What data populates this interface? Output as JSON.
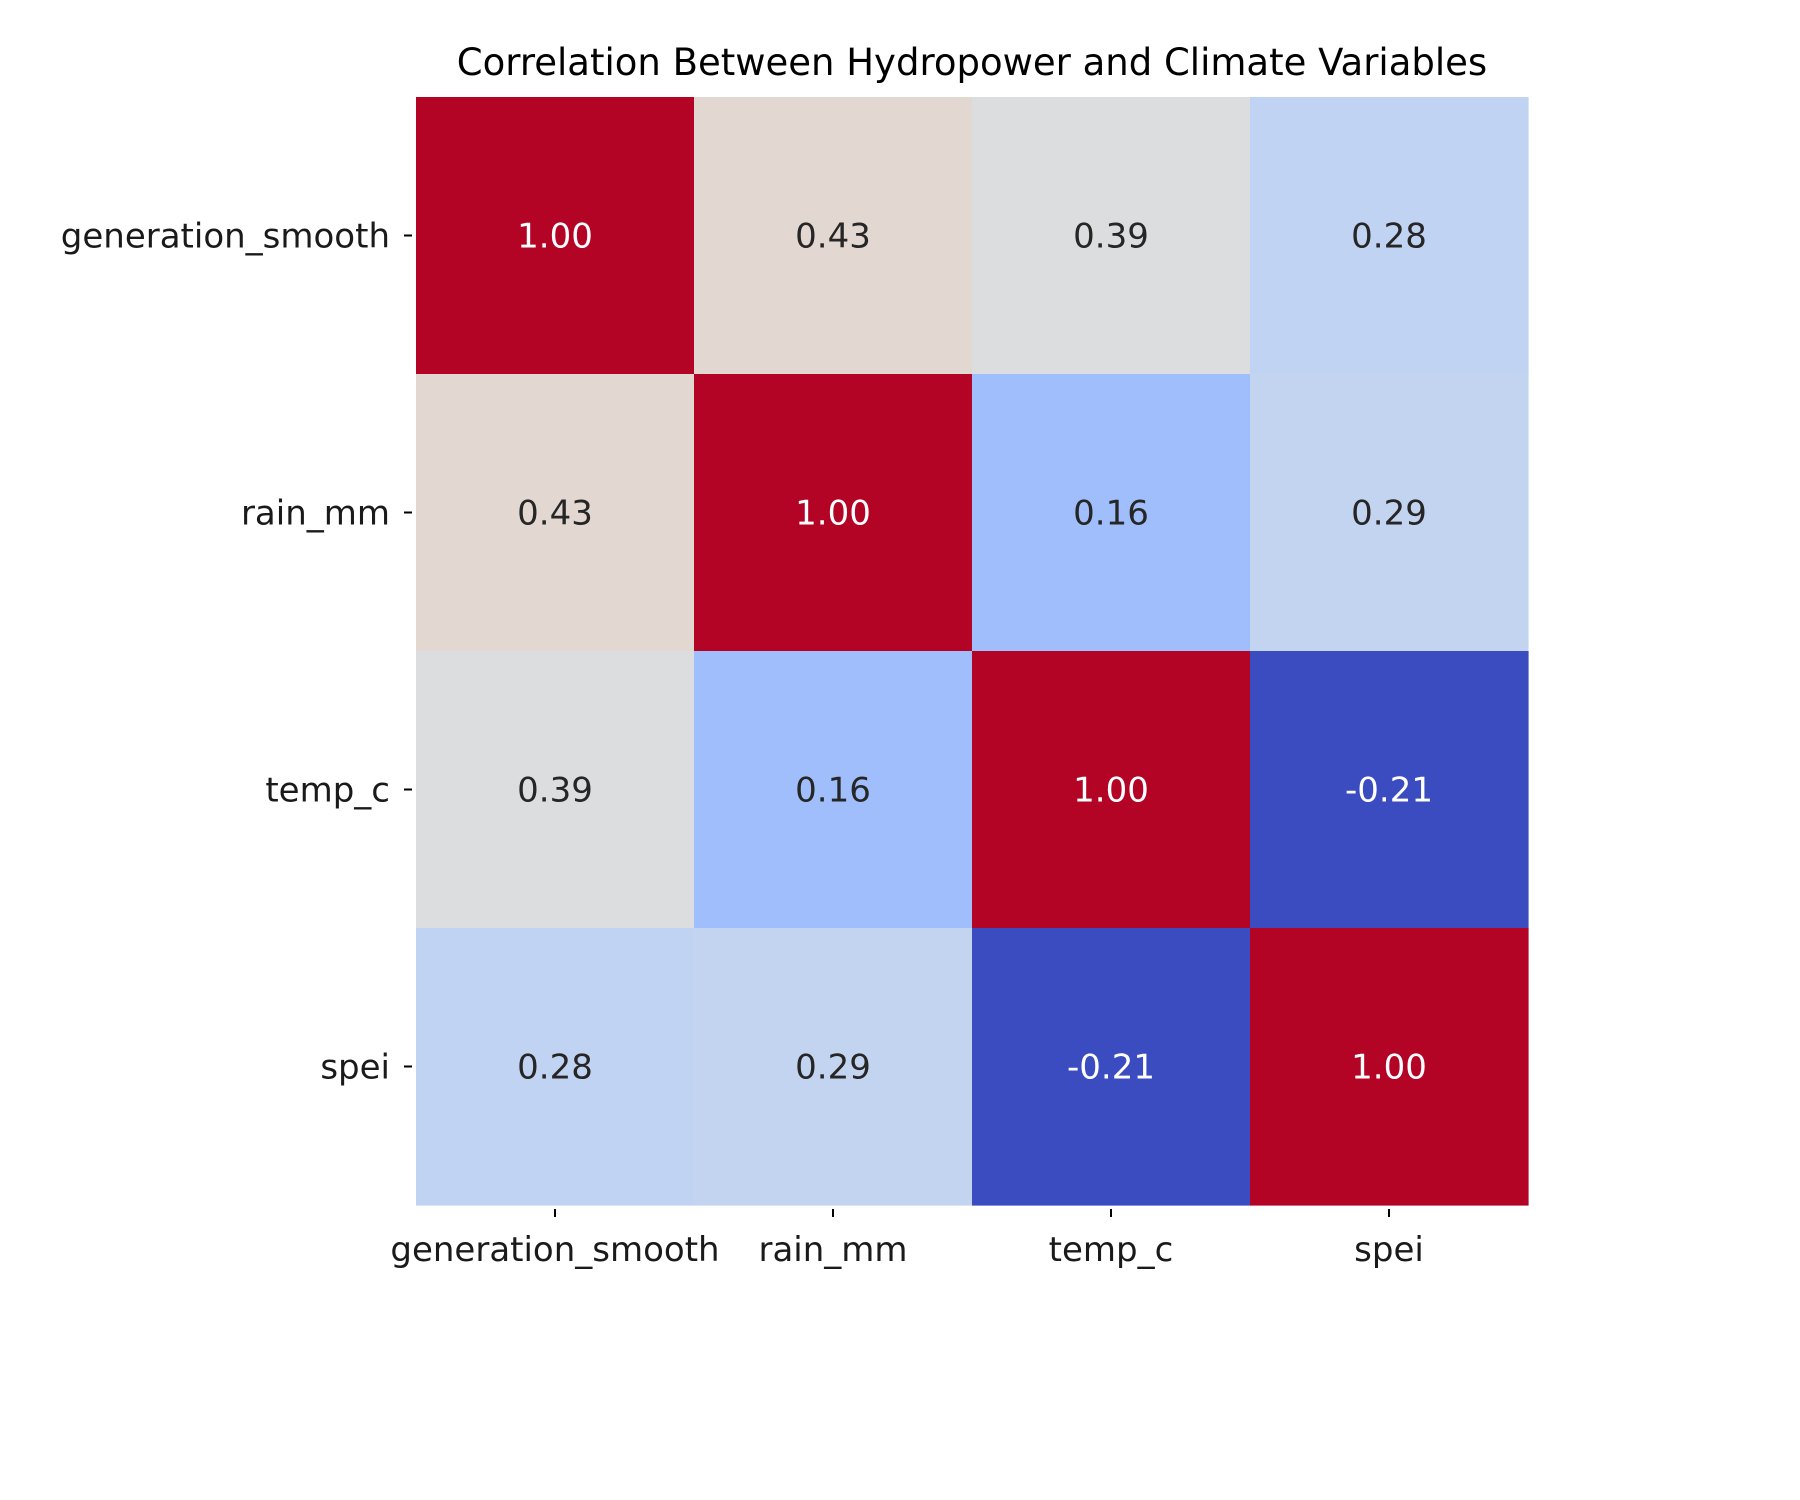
{
  "chart_data": {
    "type": "heatmap",
    "title": "Correlation Between Hydropower and Climate Variables",
    "xlabel": "",
    "ylabel": "",
    "x_categories": [
      "generation_smooth",
      "rain_mm",
      "temp_c",
      "spei"
    ],
    "y_categories": [
      "generation_smooth",
      "rain_mm",
      "temp_c",
      "spei"
    ],
    "values": [
      [
        1.0,
        0.43,
        0.39,
        0.28
      ],
      [
        0.43,
        1.0,
        0.16,
        0.29
      ],
      [
        0.39,
        0.16,
        1.0,
        -0.21
      ],
      [
        0.28,
        0.29,
        -0.21,
        1.0
      ]
    ],
    "value_labels": [
      [
        "1.00",
        "0.43",
        "0.39",
        "0.28"
      ],
      [
        "0.43",
        "1.00",
        "0.16",
        "0.29"
      ],
      [
        "0.39",
        "0.16",
        "1.00",
        "-0.21"
      ],
      [
        "0.28",
        "0.29",
        "-0.21",
        "1.00"
      ]
    ],
    "colormap": "coolwarm",
    "value_range": [
      -0.21,
      1.0
    ],
    "colorbar": false,
    "annotations": true,
    "grid": false
  }
}
